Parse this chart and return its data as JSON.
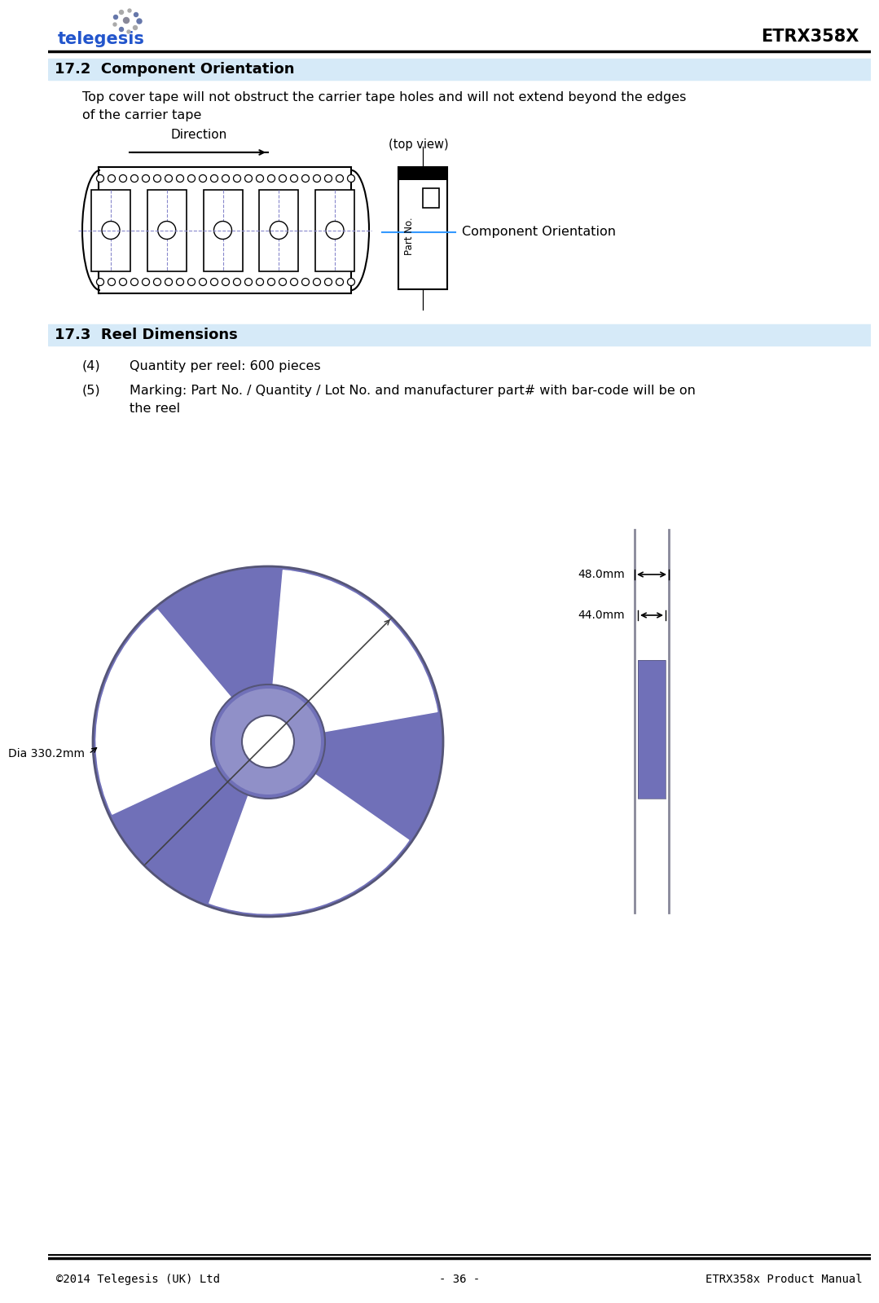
{
  "title_right": "ETRX358X",
  "footer_left": "©2014 Telegesis (UK) Ltd",
  "footer_center": "- 36 -",
  "footer_right": "ETRX358x Product Manual",
  "section_17_2_title": "17.2  Component Orientation",
  "section_17_2_text1": "Top cover tape will not obstruct the carrier tape holes and will not extend beyond the edges",
  "section_17_2_text2": "of the carrier tape",
  "direction_label": "Direction",
  "top_view_label": "(top view)",
  "component_orientation_label": "Component Orientation",
  "part_no_label": "Part No.",
  "section_17_3_title": "17.3  Reel Dimensions",
  "note_4_prefix": "(4)",
  "note_4_text": "Quantity per reel: 600 pieces",
  "note_5_prefix": "(5)",
  "note_5_text1": "Marking: Part No. / Quantity / Lot No. and manufacturer part# with bar-code will be on",
  "note_5_text2": "the reel",
  "dim_48": "48.0mm",
  "dim_44": "44.0mm",
  "dim_dia": "Dia 330.2mm",
  "section_bg_color": "#d6eaf8",
  "reel_fill_color": "#7070b8",
  "reel_edge_color": "#555577",
  "side_view_line_color": "#888899"
}
